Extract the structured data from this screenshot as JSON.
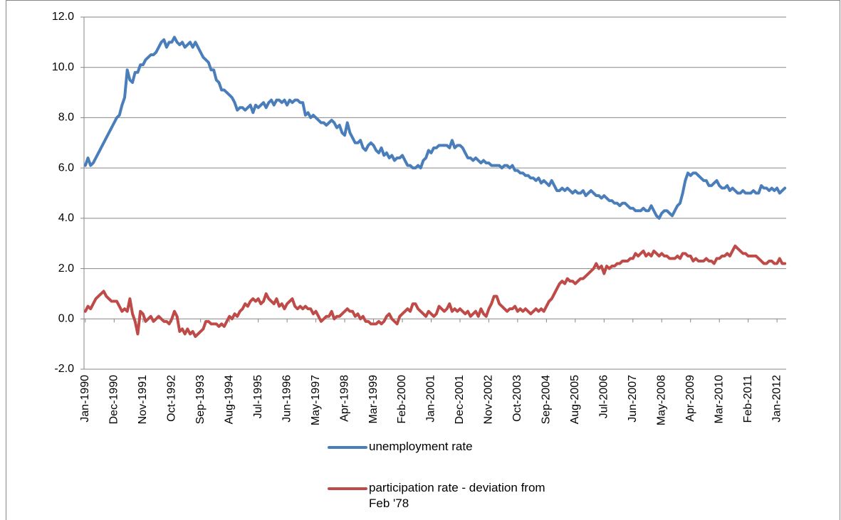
{
  "chart_data": {
    "type": "line",
    "categories": [
      "Jan-1990",
      null,
      null,
      null,
      null,
      null,
      null,
      null,
      null,
      null,
      null,
      "Dec-1990",
      null,
      null,
      null,
      null,
      null,
      null,
      null,
      null,
      null,
      null,
      "Nov-1991",
      null,
      null,
      null,
      null,
      null,
      null,
      null,
      null,
      null,
      null,
      "Oct-1992",
      null,
      null,
      null,
      null,
      null,
      null,
      null,
      null,
      null,
      null,
      "Sep-1993",
      null,
      null,
      null,
      null,
      null,
      null,
      null,
      null,
      null,
      null,
      "Aug-1994",
      null,
      null,
      null,
      null,
      null,
      null,
      null,
      null,
      null,
      null,
      "Jul-1995",
      null,
      null,
      null,
      null,
      null,
      null,
      null,
      null,
      null,
      null,
      "Jun-1996",
      null,
      null,
      null,
      null,
      null,
      null,
      null,
      null,
      null,
      null,
      "May-1997",
      null,
      null,
      null,
      null,
      null,
      null,
      null,
      null,
      null,
      null,
      "Apr-1998",
      null,
      null,
      null,
      null,
      null,
      null,
      null,
      null,
      null,
      null,
      "Mar-1999",
      null,
      null,
      null,
      null,
      null,
      null,
      null,
      null,
      null,
      null,
      "Feb-2000",
      null,
      null,
      null,
      null,
      null,
      null,
      null,
      null,
      null,
      null,
      "Jan-2001",
      null,
      null,
      null,
      null,
      null,
      null,
      null,
      null,
      null,
      null,
      "Dec-2001",
      null,
      null,
      null,
      null,
      null,
      null,
      null,
      null,
      null,
      null,
      "Nov-2002",
      null,
      null,
      null,
      null,
      null,
      null,
      null,
      null,
      null,
      null,
      "Oct-2003",
      null,
      null,
      null,
      null,
      null,
      null,
      null,
      null,
      null,
      null,
      "Sep-2004",
      null,
      null,
      null,
      null,
      null,
      null,
      null,
      null,
      null,
      null,
      "Aug-2005",
      null,
      null,
      null,
      null,
      null,
      null,
      null,
      null,
      null,
      null,
      "Jul-2006",
      null,
      null,
      null,
      null,
      null,
      null,
      null,
      null,
      null,
      null,
      "Jun-2007",
      null,
      null,
      null,
      null,
      null,
      null,
      null,
      null,
      null,
      null,
      "May-2008",
      null,
      null,
      null,
      null,
      null,
      null,
      null,
      null,
      null,
      null,
      "Apr-2009",
      null,
      null,
      null,
      null,
      null,
      null,
      null,
      null,
      null,
      null,
      "Mar-2010",
      null,
      null,
      null,
      null,
      null,
      null,
      null,
      null,
      null,
      null,
      "Feb-2011",
      null,
      null,
      null,
      null,
      null,
      null,
      null,
      null,
      null,
      null,
      "Jan-2012",
      null,
      null,
      null
    ],
    "series": [
      {
        "name": "unemployment rate",
        "color": "#4a7ebb",
        "values": [
          6.1,
          6.4,
          6.1,
          6.2,
          6.4,
          6.6,
          6.8,
          7.0,
          7.2,
          7.4,
          7.6,
          7.8,
          8.0,
          8.1,
          8.5,
          8.8,
          9.9,
          9.5,
          9.4,
          9.8,
          9.8,
          10.1,
          10.1,
          10.3,
          10.4,
          10.5,
          10.5,
          10.6,
          10.8,
          11.0,
          11.1,
          10.8,
          11.0,
          11.0,
          11.2,
          11.0,
          10.9,
          11.0,
          10.8,
          10.9,
          11.0,
          10.8,
          11.0,
          10.8,
          10.6,
          10.4,
          10.3,
          10.2,
          9.9,
          9.9,
          9.5,
          9.4,
          9.1,
          9.1,
          9.0,
          8.9,
          8.8,
          8.6,
          8.3,
          8.4,
          8.4,
          8.3,
          8.4,
          8.5,
          8.2,
          8.5,
          8.4,
          8.5,
          8.6,
          8.4,
          8.6,
          8.7,
          8.5,
          8.7,
          8.7,
          8.6,
          8.7,
          8.5,
          8.7,
          8.6,
          8.7,
          8.7,
          8.6,
          8.6,
          8.1,
          8.2,
          8.0,
          8.1,
          8.0,
          7.9,
          7.8,
          7.8,
          7.7,
          7.8,
          7.9,
          7.8,
          7.6,
          7.7,
          7.4,
          7.3,
          7.8,
          7.4,
          7.2,
          7.0,
          7.0,
          7.1,
          6.8,
          6.7,
          6.9,
          7.0,
          6.9,
          6.7,
          6.6,
          6.8,
          6.5,
          6.6,
          6.4,
          6.5,
          6.3,
          6.4,
          6.4,
          6.5,
          6.3,
          6.1,
          6.1,
          6.0,
          6.0,
          6.1,
          6.0,
          6.3,
          6.4,
          6.7,
          6.6,
          6.8,
          6.8,
          6.9,
          6.9,
          6.9,
          6.9,
          6.8,
          7.1,
          6.8,
          6.9,
          6.9,
          6.8,
          6.6,
          6.4,
          6.4,
          6.3,
          6.4,
          6.3,
          6.2,
          6.3,
          6.2,
          6.2,
          6.1,
          6.1,
          6.1,
          6.1,
          6.0,
          6.1,
          6.1,
          6.0,
          6.1,
          5.9,
          5.9,
          5.8,
          5.8,
          5.7,
          5.7,
          5.6,
          5.6,
          5.5,
          5.6,
          5.4,
          5.5,
          5.4,
          5.3,
          5.5,
          5.3,
          5.1,
          5.1,
          5.2,
          5.1,
          5.2,
          5.1,
          5.0,
          5.1,
          5.0,
          5.0,
          5.1,
          4.9,
          5.0,
          5.1,
          5.0,
          4.9,
          4.9,
          4.8,
          4.9,
          4.8,
          4.7,
          4.7,
          4.6,
          4.6,
          4.5,
          4.6,
          4.6,
          4.5,
          4.4,
          4.4,
          4.3,
          4.3,
          4.3,
          4.4,
          4.3,
          4.3,
          4.5,
          4.3,
          4.1,
          4.0,
          4.2,
          4.3,
          4.3,
          4.2,
          4.1,
          4.3,
          4.5,
          4.6,
          5.0,
          5.5,
          5.8,
          5.7,
          5.8,
          5.8,
          5.7,
          5.6,
          5.5,
          5.5,
          5.3,
          5.3,
          5.4,
          5.5,
          5.3,
          5.2,
          5.2,
          5.3,
          5.1,
          5.2,
          5.1,
          5.0,
          5.0,
          5.1,
          5.0,
          5.0,
          5.0,
          5.1,
          5.0,
          5.0,
          5.3,
          5.2,
          5.2,
          5.1,
          5.2,
          5.1,
          5.2,
          5.0,
          5.1,
          5.2
        ]
      },
      {
        "name": "participation rate - deviation from Feb '78",
        "color": "#be4b48",
        "values": [
          0.3,
          0.5,
          0.4,
          0.6,
          0.8,
          0.9,
          1.0,
          1.1,
          0.9,
          0.8,
          0.7,
          0.7,
          0.7,
          0.5,
          0.3,
          0.4,
          0.3,
          0.8,
          0.2,
          -0.1,
          -0.6,
          0.3,
          0.2,
          -0.1,
          0.0,
          0.1,
          -0.1,
          0.0,
          0.1,
          0.0,
          -0.1,
          -0.1,
          -0.2,
          0.0,
          0.3,
          0.1,
          -0.5,
          -0.4,
          -0.6,
          -0.4,
          -0.6,
          -0.5,
          -0.7,
          -0.6,
          -0.5,
          -0.4,
          -0.1,
          -0.1,
          -0.2,
          -0.2,
          -0.2,
          -0.3,
          -0.2,
          -0.3,
          -0.1,
          0.1,
          0.0,
          0.2,
          0.1,
          0.3,
          0.4,
          0.6,
          0.5,
          0.7,
          0.8,
          0.7,
          0.8,
          0.6,
          0.7,
          1.0,
          0.8,
          0.7,
          0.6,
          0.8,
          0.5,
          0.6,
          0.4,
          0.6,
          0.7,
          0.8,
          0.5,
          0.4,
          0.5,
          0.4,
          0.5,
          0.4,
          0.4,
          0.2,
          0.3,
          0.1,
          -0.1,
          0.0,
          0.1,
          0.1,
          0.3,
          0.0,
          0.1,
          0.1,
          0.2,
          0.3,
          0.4,
          0.3,
          0.3,
          0.1,
          0.2,
          0.0,
          0.1,
          -0.1,
          -0.1,
          -0.2,
          -0.2,
          -0.2,
          -0.1,
          -0.2,
          -0.1,
          0.1,
          0.2,
          0.0,
          -0.1,
          -0.2,
          0.1,
          0.2,
          0.3,
          0.4,
          0.3,
          0.6,
          0.6,
          0.4,
          0.3,
          0.2,
          0.1,
          0.3,
          0.2,
          0.1,
          0.2,
          0.5,
          0.4,
          0.3,
          0.4,
          0.6,
          0.3,
          0.4,
          0.3,
          0.4,
          0.3,
          0.2,
          0.3,
          0.1,
          0.2,
          0.3,
          0.1,
          0.4,
          0.2,
          0.1,
          0.4,
          0.6,
          0.9,
          0.9,
          0.6,
          0.5,
          0.4,
          0.3,
          0.4,
          0.4,
          0.5,
          0.3,
          0.4,
          0.3,
          0.4,
          0.3,
          0.2,
          0.3,
          0.4,
          0.3,
          0.4,
          0.3,
          0.5,
          0.7,
          0.8,
          1.0,
          1.2,
          1.4,
          1.5,
          1.4,
          1.6,
          1.5,
          1.5,
          1.4,
          1.5,
          1.6,
          1.6,
          1.7,
          1.8,
          1.9,
          2.0,
          2.2,
          2.0,
          2.1,
          1.8,
          2.1,
          2.0,
          2.1,
          2.1,
          2.2,
          2.2,
          2.3,
          2.3,
          2.3,
          2.4,
          2.4,
          2.6,
          2.5,
          2.6,
          2.7,
          2.5,
          2.6,
          2.5,
          2.7,
          2.6,
          2.5,
          2.6,
          2.5,
          2.5,
          2.4,
          2.4,
          2.4,
          2.5,
          2.4,
          2.6,
          2.6,
          2.5,
          2.5,
          2.3,
          2.4,
          2.3,
          2.3,
          2.3,
          2.4,
          2.3,
          2.3,
          2.2,
          2.4,
          2.4,
          2.5,
          2.5,
          2.6,
          2.5,
          2.7,
          2.9,
          2.8,
          2.7,
          2.6,
          2.6,
          2.5,
          2.5,
          2.5,
          2.5,
          2.4,
          2.3,
          2.2,
          2.2,
          2.3,
          2.3,
          2.2,
          2.2,
          2.4,
          2.2,
          2.2
        ]
      }
    ],
    "ylim": [
      -2,
      12
    ],
    "yticks": [
      {
        "value": -2,
        "label": "-2.0"
      },
      {
        "value": 0,
        "label": "0.0"
      },
      {
        "value": 2,
        "label": "2.0"
      },
      {
        "value": 4,
        "label": "4.0"
      },
      {
        "value": 6,
        "label": "6.0"
      },
      {
        "value": 8,
        "label": "8.0"
      },
      {
        "value": 10,
        "label": "10.0"
      },
      {
        "value": 12,
        "label": "12.0"
      }
    ],
    "grid": true,
    "legend": "bottom"
  }
}
